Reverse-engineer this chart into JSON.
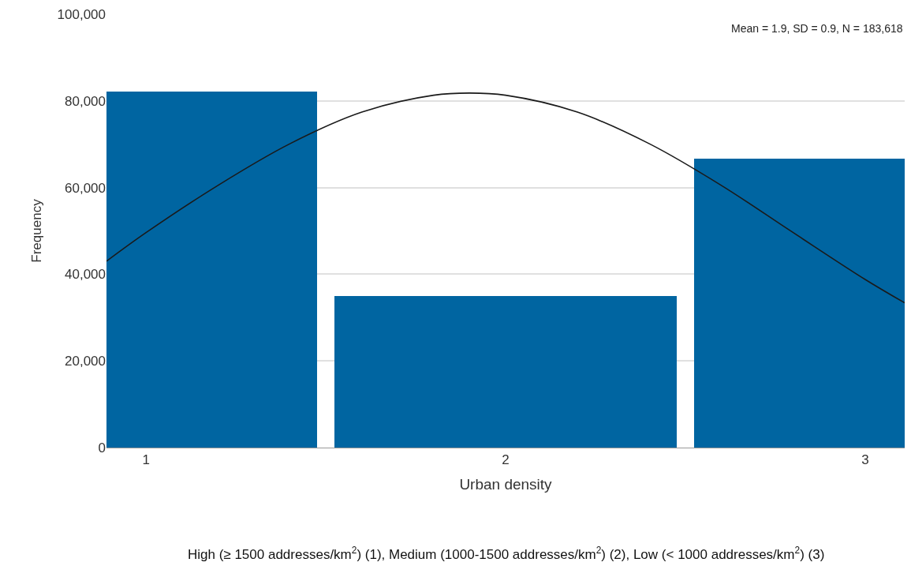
{
  "chart_data": {
    "type": "histogram",
    "xlabel": "Urban density",
    "ylabel": "Frequency",
    "bins": [
      0.89,
      1.475,
      1.525,
      2.475,
      2.525,
      3.11
    ],
    "values": [
      82100,
      0,
      34900,
      0,
      66600
    ],
    "color": "#0065a1",
    "series": [
      {
        "type": "line",
        "color": "#1a1a1a",
        "x": [
          0.89,
          1.0,
          1.2,
          1.4,
          1.6,
          1.8,
          1.9,
          2.0,
          2.2,
          2.4,
          2.6,
          2.8,
          3.0,
          3.11
        ],
        "values": [
          43000,
          49600,
          60500,
          70100,
          77400,
          81300,
          81800,
          81300,
          77400,
          70100,
          60500,
          49600,
          38800,
          33400
        ]
      }
    ],
    "xlim": [
      0.89,
      3.11
    ],
    "xticks": [
      1,
      2,
      3
    ],
    "ylim": [
      0,
      100000
    ],
    "yticks": [
      {
        "value": 0,
        "label": "0"
      },
      {
        "value": 20000,
        "label": "20,000"
      },
      {
        "value": 40000,
        "label": "40,000"
      },
      {
        "value": 60000,
        "label": "60,000"
      },
      {
        "value": 80000,
        "label": "80,000"
      },
      {
        "value": 100000,
        "label": "100,000"
      }
    ],
    "grid": "y",
    "annotations": [
      "Mean = 1.9, SD = 0.9, N = 183,618",
      "High (≥ 1500 addresses/km$^{2}$) (1), Medium (1000-1500 addresses/km$^{2}$) (2), Low (< 1000 addresses/km$^{2}$) (3)"
    ]
  }
}
